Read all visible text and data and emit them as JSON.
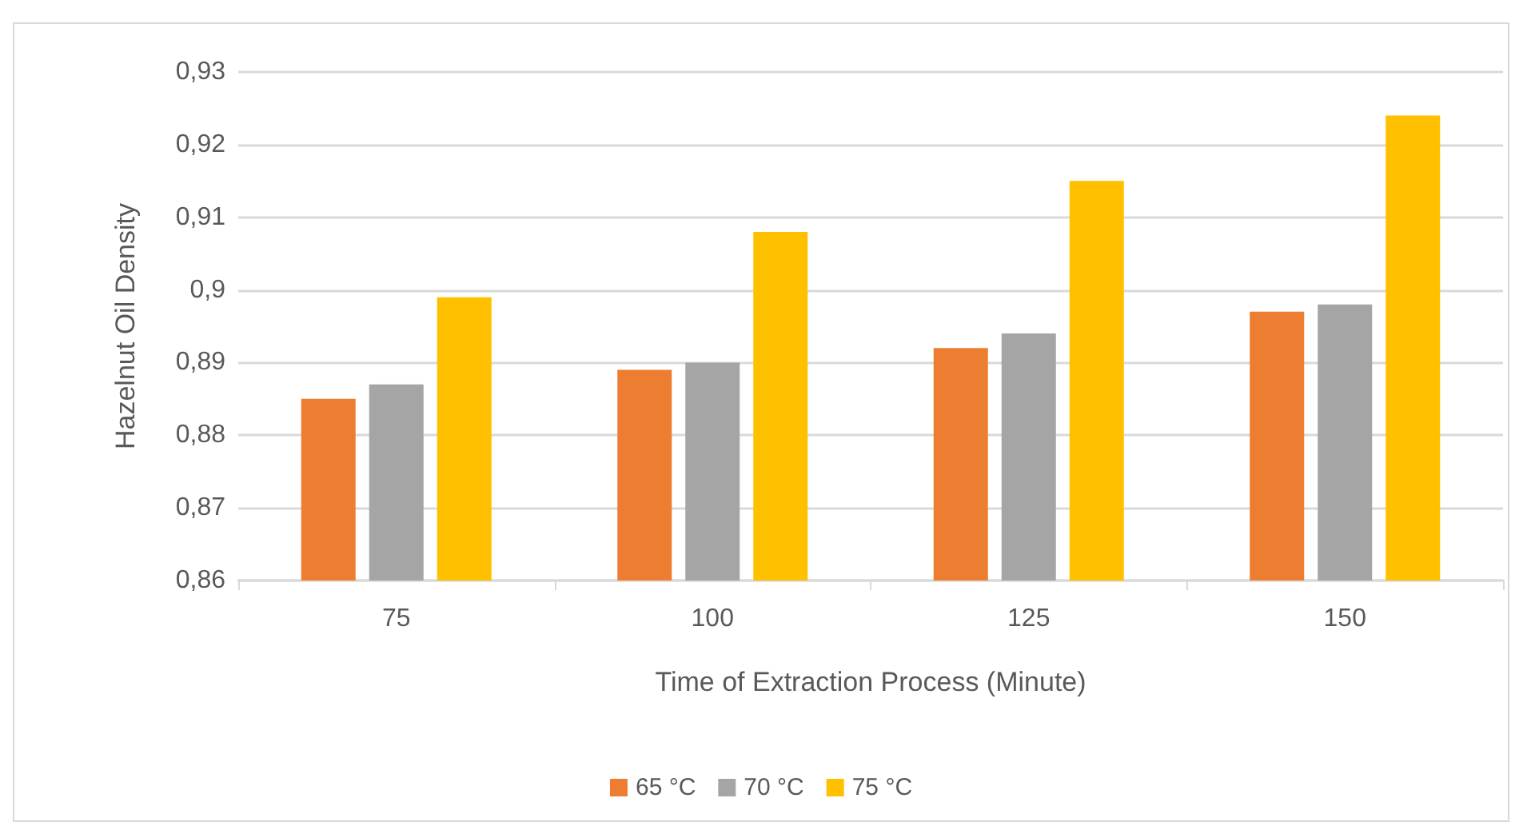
{
  "chart_data": {
    "type": "bar",
    "xlabel": "Time of Extraction Process (Minute)",
    "ylabel": "Hazelnut Oil Density",
    "categories": [
      "75",
      "100",
      "125",
      "150"
    ],
    "series": [
      {
        "name": "65 °C",
        "color": "#ed7d31",
        "values": [
          0.885,
          0.889,
          0.892,
          0.897
        ]
      },
      {
        "name": "70 °C",
        "color": "#a5a5a5",
        "values": [
          0.887,
          0.89,
          0.894,
          0.898
        ]
      },
      {
        "name": "75 °C",
        "color": "#ffc000",
        "values": [
          0.899,
          0.908,
          0.915,
          0.924
        ]
      }
    ],
    "ylim": [
      0.86,
      0.93
    ],
    "yticks": [
      {
        "value": 0.86,
        "label": "0,86"
      },
      {
        "value": 0.87,
        "label": "0,87"
      },
      {
        "value": 0.88,
        "label": "0,88"
      },
      {
        "value": 0.89,
        "label": "0,89"
      },
      {
        "value": 0.9,
        "label": "0,9"
      },
      {
        "value": 0.91,
        "label": "0,91"
      },
      {
        "value": 0.92,
        "label": "0,92"
      },
      {
        "value": 0.93,
        "label": "0,93"
      }
    ],
    "grid": "y",
    "legend": "bottom"
  }
}
